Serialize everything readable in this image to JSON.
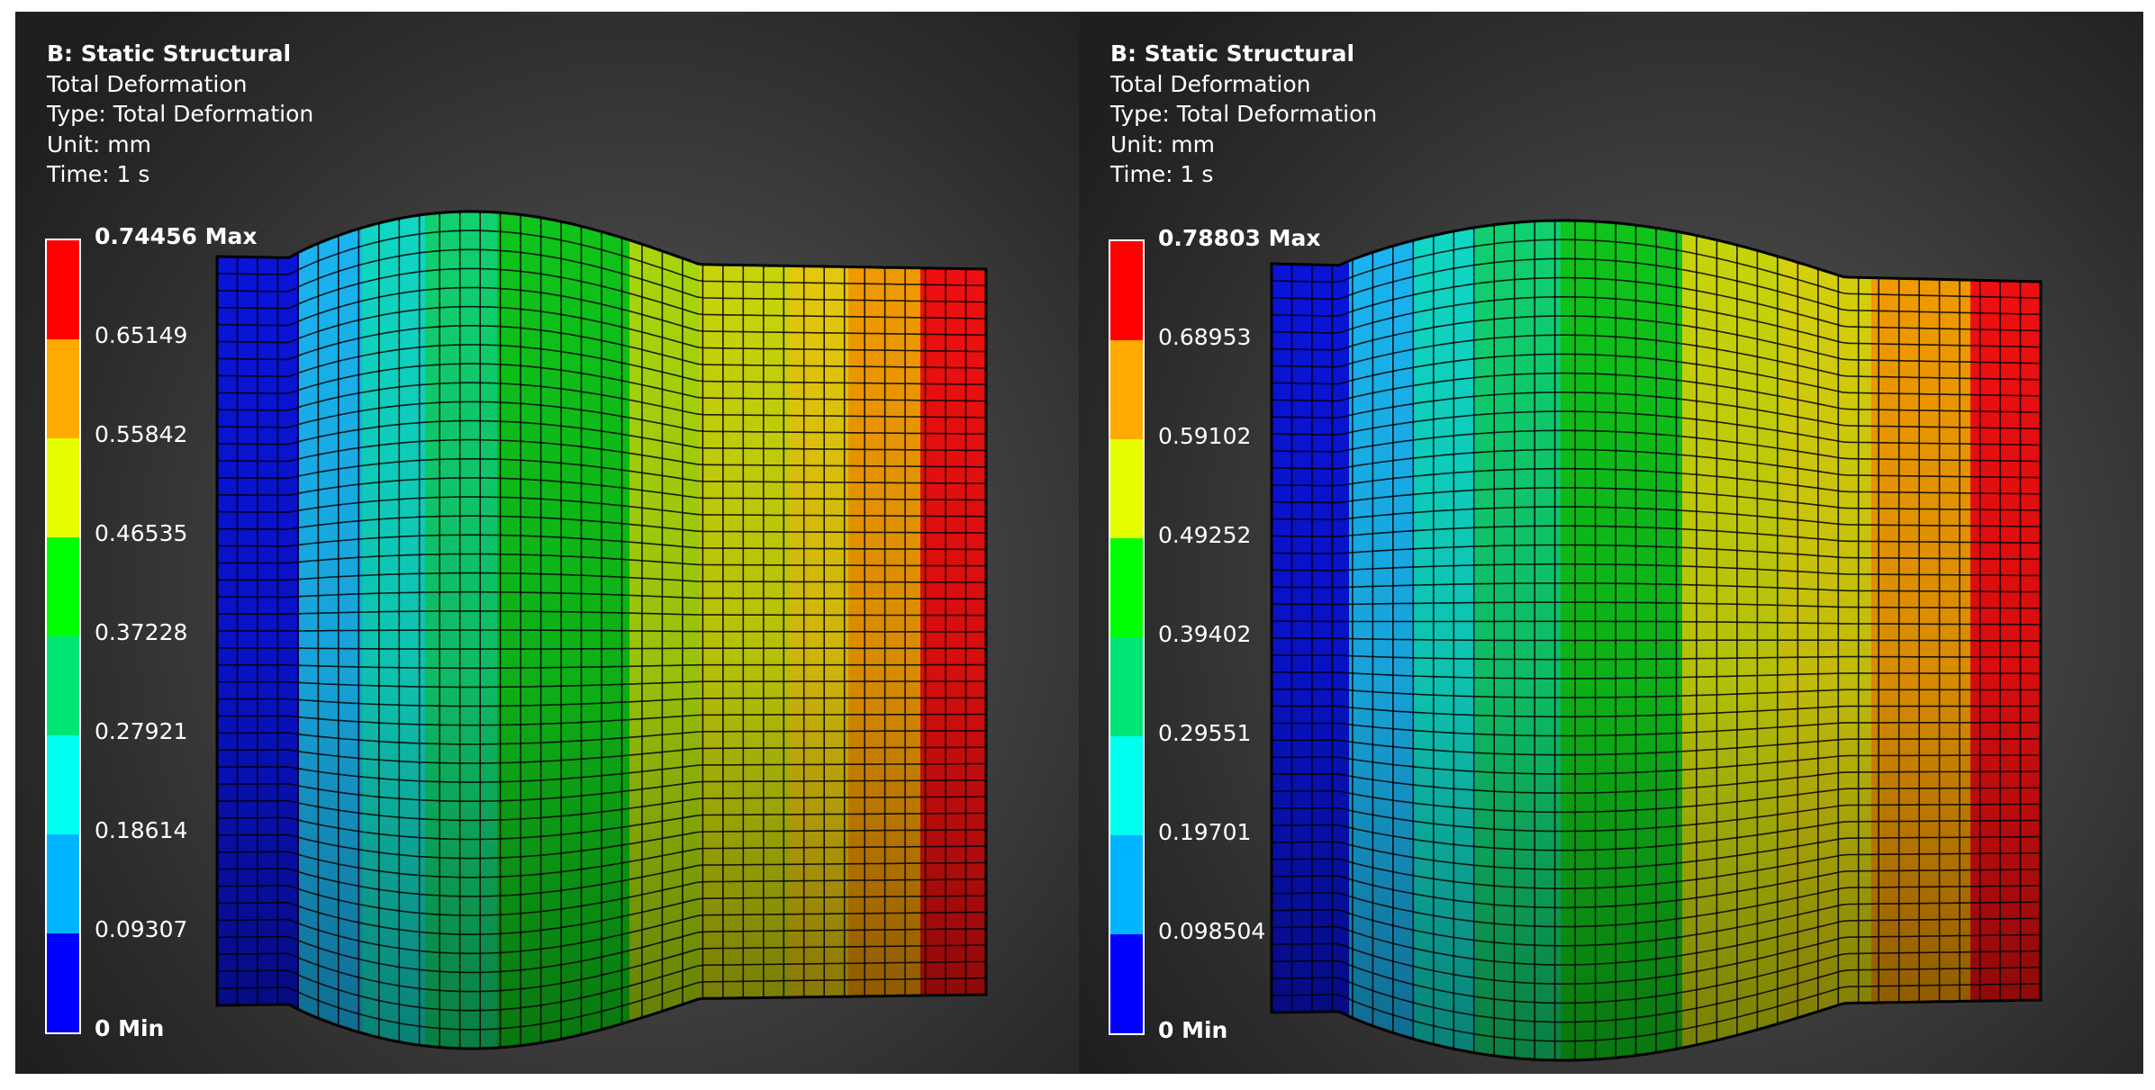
{
  "panels": [
    {
      "system": "B: Static Structural",
      "result_name": "Total Deformation",
      "type_line": "Type: Total Deformation",
      "unit_line": "Unit: mm",
      "time_line": "Time: 1 s",
      "legend": {
        "max_label": "0.74456 Max",
        "min_label": "0 Min",
        "ticks": [
          "0.65149",
          "0.55842",
          "0.46535",
          "0.37228",
          "0.27921",
          "0.18614",
          "0.09307"
        ]
      }
    },
    {
      "system": "B: Static Structural",
      "result_name": "Total Deformation",
      "type_line": "Type: Total Deformation",
      "unit_line": "Unit: mm",
      "time_line": "Time: 1 s",
      "legend": {
        "max_label": "0.78803 Max",
        "min_label": "0 Min",
        "ticks": [
          "0.68953",
          "0.59102",
          "0.49252",
          "0.39402",
          "0.29551",
          "0.19701",
          "0.098504"
        ]
      }
    }
  ],
  "colors": {
    "legend_bands_top_to_bottom": [
      "#ff0000",
      "#ffaa00",
      "#e6ff00",
      "#00ff00",
      "#00e676",
      "#00ffee",
      "#00b4ff",
      "#0000ff"
    ],
    "background_center": "#5a5a5a",
    "background_edge": "#1f1f1f",
    "mesh_line": "#000000"
  }
}
